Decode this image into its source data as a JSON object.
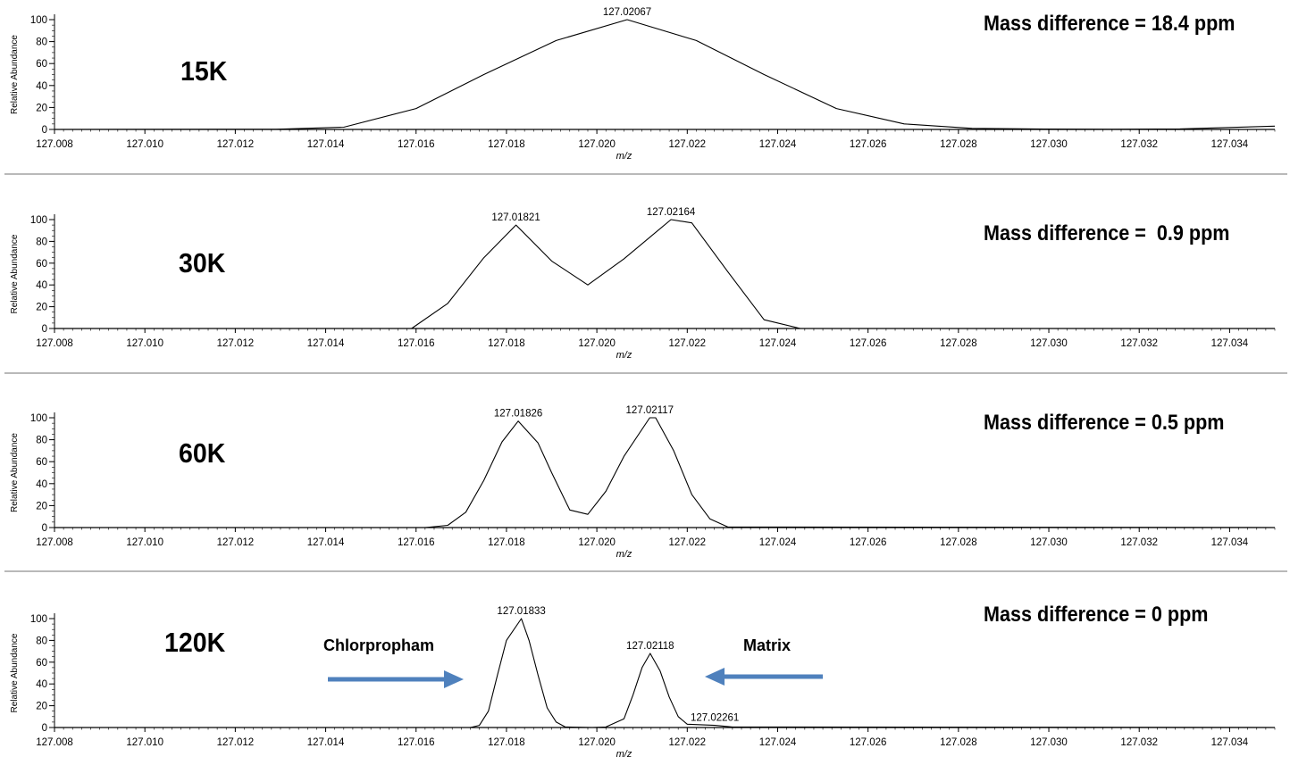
{
  "chart_data": [
    {
      "type": "line",
      "resolution_label": "15K",
      "mass_difference_label": "Mass difference = 18.4 ppm",
      "xlabel": "m/z",
      "ylabel": "Relative Abundance",
      "xlim": [
        127.008,
        127.035
      ],
      "ylim": [
        0,
        100
      ],
      "x_ticks": [
        "127.008",
        "127.010",
        "127.012",
        "127.014",
        "127.016",
        "127.018",
        "127.020",
        "127.022",
        "127.024",
        "127.026",
        "127.028",
        "127.030",
        "127.032",
        "127.034"
      ],
      "y_ticks": [
        "0",
        "20",
        "40",
        "60",
        "80",
        "100"
      ],
      "series": [
        {
          "x": [
            127.008,
            127.0129,
            127.0144,
            127.016,
            127.0175,
            127.0191,
            127.02067,
            127.0222,
            127.0237,
            127.0253,
            127.0268,
            127.0283,
            127.0299,
            127.0314,
            127.0329,
            127.035
          ],
          "y": [
            0,
            0.2,
            2,
            19,
            50,
            81,
            100,
            81,
            50,
            19,
            5,
            1,
            0.3,
            0.2,
            0.5,
            3
          ]
        }
      ],
      "peak_labels": [
        {
          "x": 127.02067,
          "y": 100,
          "text": "127.02067"
        }
      ]
    },
    {
      "type": "line",
      "resolution_label": "30K",
      "mass_difference_label": "Mass difference =  0.9 ppm",
      "xlabel": "m/z",
      "ylabel": "Relative Abundance",
      "xlim": [
        127.008,
        127.035
      ],
      "ylim": [
        0,
        100
      ],
      "x_ticks": [
        "127.008",
        "127.010",
        "127.012",
        "127.014",
        "127.016",
        "127.018",
        "127.020",
        "127.022",
        "127.024",
        "127.026",
        "127.028",
        "127.030",
        "127.032",
        "127.034"
      ],
      "y_ticks": [
        "0",
        "20",
        "40",
        "60",
        "80",
        "100"
      ],
      "series": [
        {
          "x": [
            127.008,
            127.0159,
            127.0167,
            127.0175,
            127.01821,
            127.019,
            127.0198,
            127.0206,
            127.02164,
            127.0221,
            127.0229,
            127.0237,
            127.0245,
            127.035
          ],
          "y": [
            0,
            0,
            23,
            65,
            95,
            62,
            40,
            64,
            100,
            97,
            52,
            8,
            0,
            0
          ]
        }
      ],
      "peak_labels": [
        {
          "x": 127.01821,
          "y": 95,
          "text": "127.01821"
        },
        {
          "x": 127.02164,
          "y": 100,
          "text": "127.02164"
        }
      ]
    },
    {
      "type": "line",
      "resolution_label": "60K",
      "mass_difference_label": "Mass difference = 0.5 ppm",
      "xlabel": "m/z",
      "ylabel": "Relative Abundance",
      "xlim": [
        127.008,
        127.035
      ],
      "ylim": [
        0,
        100
      ],
      "x_ticks": [
        "127.008",
        "127.010",
        "127.012",
        "127.014",
        "127.016",
        "127.018",
        "127.020",
        "127.022",
        "127.024",
        "127.026",
        "127.028",
        "127.030",
        "127.032",
        "127.034"
      ],
      "y_ticks": [
        "0",
        "20",
        "40",
        "60",
        "80",
        "100"
      ],
      "series": [
        {
          "x": [
            127.008,
            127.0162,
            127.0167,
            127.0171,
            127.0175,
            127.0179,
            127.01826,
            127.0187,
            127.019,
            127.0194,
            127.0198,
            127.0202,
            127.0206,
            127.02117,
            127.0213,
            127.0217,
            127.0221,
            127.0225,
            127.0229,
            127.035
          ],
          "y": [
            0,
            0,
            2,
            14,
            43,
            78,
            97,
            77,
            50,
            16,
            12,
            33,
            65,
            100,
            100,
            70,
            30,
            8,
            0.5,
            0
          ]
        }
      ],
      "peak_labels": [
        {
          "x": 127.01826,
          "y": 97,
          "text": "127.01826"
        },
        {
          "x": 127.02117,
          "y": 100,
          "text": "127.02117"
        }
      ]
    },
    {
      "type": "line",
      "resolution_label": "120K",
      "mass_difference_label": "Mass difference = 0 ppm",
      "xlabel": "m/z",
      "ylabel": "Relative Abundance",
      "xlim": [
        127.008,
        127.035
      ],
      "ylim": [
        0,
        100
      ],
      "x_ticks": [
        "127.008",
        "127.010",
        "127.012",
        "127.014",
        "127.016",
        "127.018",
        "127.020",
        "127.022",
        "127.024",
        "127.026",
        "127.028",
        "127.030",
        "127.032",
        "127.034"
      ],
      "y_ticks": [
        "0",
        "20",
        "40",
        "60",
        "80",
        "100"
      ],
      "series": [
        {
          "x": [
            127.008,
            127.0172,
            127.0174,
            127.0176,
            127.0178,
            127.018,
            127.01833,
            127.0185,
            127.0187,
            127.0189,
            127.0191,
            127.0193,
            127.0199,
            127.0202,
            127.0206,
            127.0208,
            127.021,
            127.02118,
            127.0214,
            127.0216,
            127.0218,
            127.022,
            127.02261,
            127.023,
            127.035
          ],
          "y": [
            0,
            0,
            2,
            15,
            48,
            80,
            100,
            80,
            48,
            18,
            5,
            0.5,
            0,
            0.5,
            8,
            30,
            55,
            68,
            52,
            28,
            10,
            3,
            2,
            0.5,
            0
          ]
        }
      ],
      "peak_labels": [
        {
          "x": 127.01833,
          "y": 100,
          "text": "127.01833"
        },
        {
          "x": 127.02118,
          "y": 68,
          "text": "127.02118"
        },
        {
          "x": 127.02261,
          "y": 2,
          "text": "127.02261"
        }
      ],
      "annotations": [
        {
          "text": "Chlorpropham",
          "arrow_direction": "right"
        },
        {
          "text": "Matrix",
          "arrow_direction": "left"
        }
      ],
      "arrow_color": "#4f81bd"
    }
  ]
}
